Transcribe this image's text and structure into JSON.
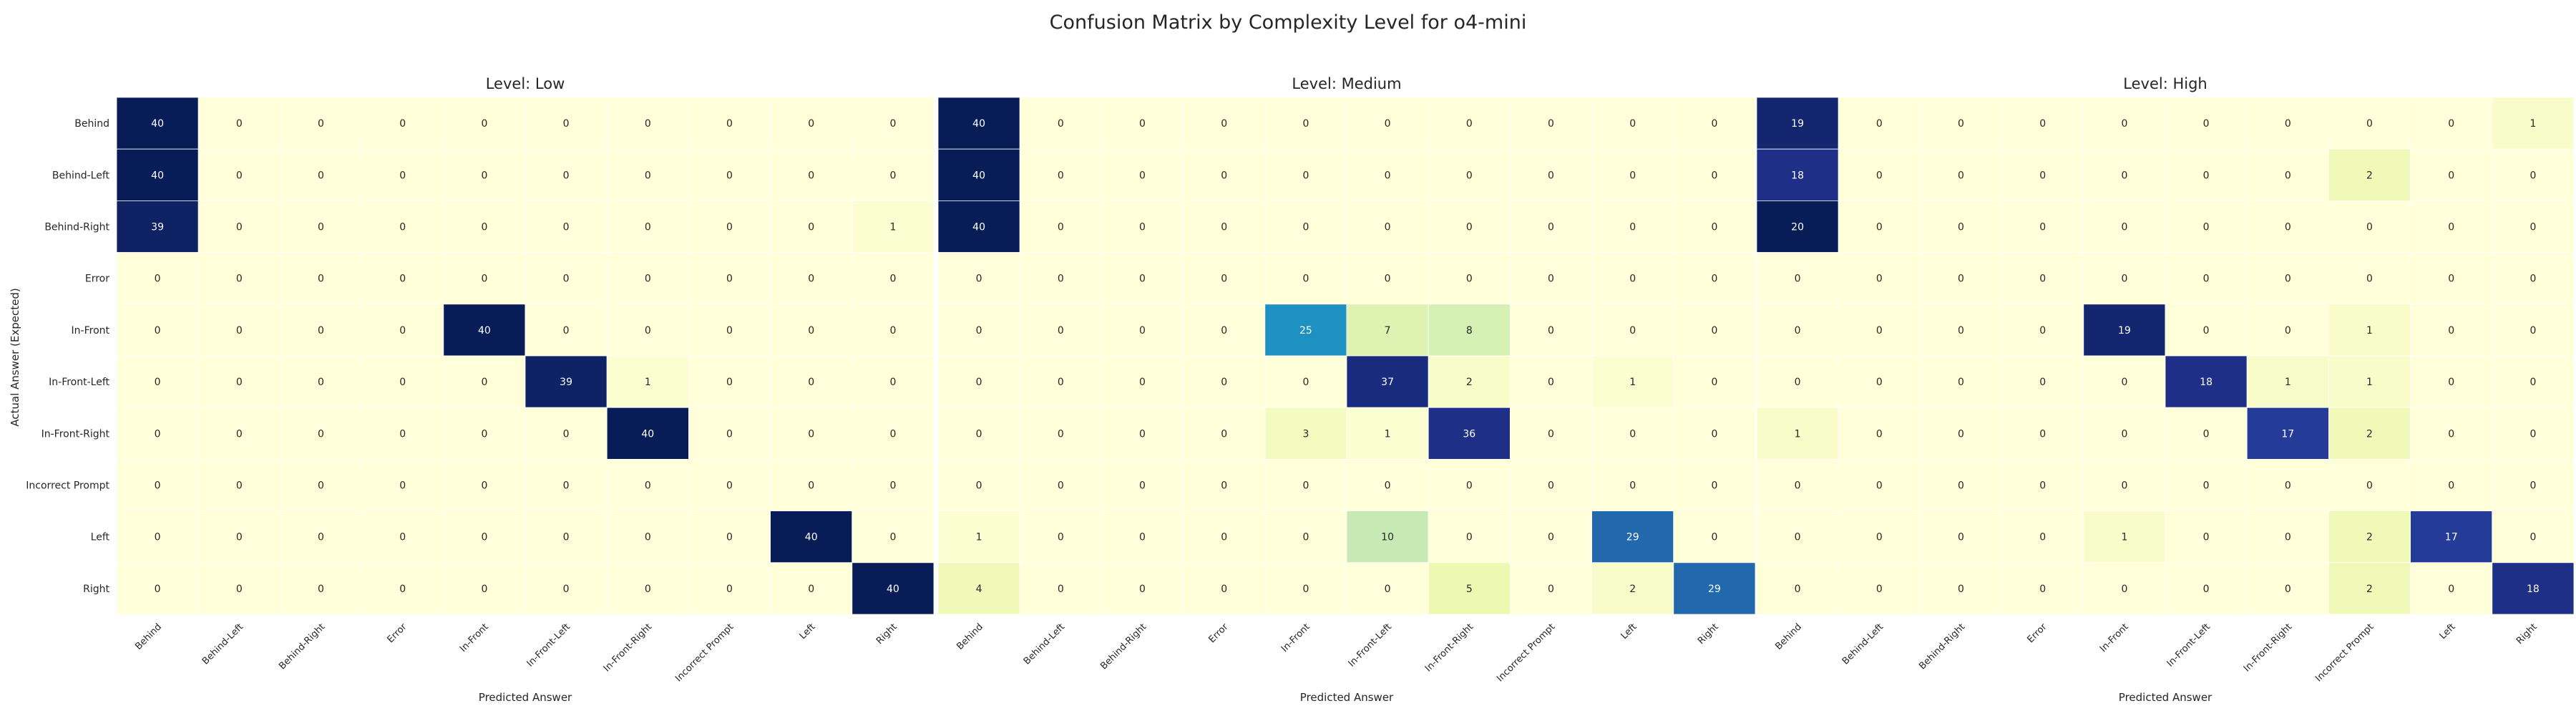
{
  "chart_data": {
    "type": "heatmap",
    "title": "Confusion Matrix by Complexity Level for o4-mini",
    "ylabel": "Actual Answer (Expected)",
    "xlabel": "Predicted Answer",
    "labels": [
      "Behind",
      "Behind-Left",
      "Behind-Right",
      "Error",
      "In-Front",
      "In-Front-Left",
      "In-Front-Right",
      "Incorrect Prompt",
      "Left",
      "Right"
    ],
    "colormap": "YlGnBu",
    "panels": [
      {
        "title": "Level: Low",
        "vmax": 40,
        "matrix": [
          [
            40,
            0,
            0,
            0,
            0,
            0,
            0,
            0,
            0,
            0
          ],
          [
            40,
            0,
            0,
            0,
            0,
            0,
            0,
            0,
            0,
            0
          ],
          [
            39,
            0,
            0,
            0,
            0,
            0,
            0,
            0,
            0,
            1
          ],
          [
            0,
            0,
            0,
            0,
            0,
            0,
            0,
            0,
            0,
            0
          ],
          [
            0,
            0,
            0,
            0,
            40,
            0,
            0,
            0,
            0,
            0
          ],
          [
            0,
            0,
            0,
            0,
            0,
            39,
            1,
            0,
            0,
            0
          ],
          [
            0,
            0,
            0,
            0,
            0,
            0,
            40,
            0,
            0,
            0
          ],
          [
            0,
            0,
            0,
            0,
            0,
            0,
            0,
            0,
            0,
            0
          ],
          [
            0,
            0,
            0,
            0,
            0,
            0,
            0,
            0,
            40,
            0
          ],
          [
            0,
            0,
            0,
            0,
            0,
            0,
            0,
            0,
            0,
            40
          ]
        ]
      },
      {
        "title": "Level: Medium",
        "vmax": 40,
        "matrix": [
          [
            40,
            0,
            0,
            0,
            0,
            0,
            0,
            0,
            0,
            0
          ],
          [
            40,
            0,
            0,
            0,
            0,
            0,
            0,
            0,
            0,
            0
          ],
          [
            40,
            0,
            0,
            0,
            0,
            0,
            0,
            0,
            0,
            0
          ],
          [
            0,
            0,
            0,
            0,
            0,
            0,
            0,
            0,
            0,
            0
          ],
          [
            0,
            0,
            0,
            0,
            25,
            7,
            8,
            0,
            0,
            0
          ],
          [
            0,
            0,
            0,
            0,
            0,
            37,
            2,
            0,
            1,
            0
          ],
          [
            0,
            0,
            0,
            0,
            3,
            1,
            36,
            0,
            0,
            0
          ],
          [
            0,
            0,
            0,
            0,
            0,
            0,
            0,
            0,
            0,
            0
          ],
          [
            1,
            0,
            0,
            0,
            0,
            10,
            0,
            0,
            29,
            0
          ],
          [
            4,
            0,
            0,
            0,
            0,
            0,
            5,
            0,
            2,
            29
          ]
        ]
      },
      {
        "title": "Level: High",
        "vmax": 20,
        "matrix": [
          [
            19,
            0,
            0,
            0,
            0,
            0,
            0,
            0,
            0,
            1
          ],
          [
            18,
            0,
            0,
            0,
            0,
            0,
            0,
            2,
            0,
            0
          ],
          [
            20,
            0,
            0,
            0,
            0,
            0,
            0,
            0,
            0,
            0
          ],
          [
            0,
            0,
            0,
            0,
            0,
            0,
            0,
            0,
            0,
            0
          ],
          [
            0,
            0,
            0,
            0,
            19,
            0,
            0,
            1,
            0,
            0
          ],
          [
            0,
            0,
            0,
            0,
            0,
            18,
            1,
            1,
            0,
            0
          ],
          [
            1,
            0,
            0,
            0,
            0,
            0,
            17,
            2,
            0,
            0
          ],
          [
            0,
            0,
            0,
            0,
            0,
            0,
            0,
            0,
            0,
            0
          ],
          [
            0,
            0,
            0,
            0,
            1,
            0,
            0,
            2,
            17,
            0
          ],
          [
            0,
            0,
            0,
            0,
            0,
            0,
            0,
            2,
            0,
            18
          ]
        ]
      }
    ]
  }
}
